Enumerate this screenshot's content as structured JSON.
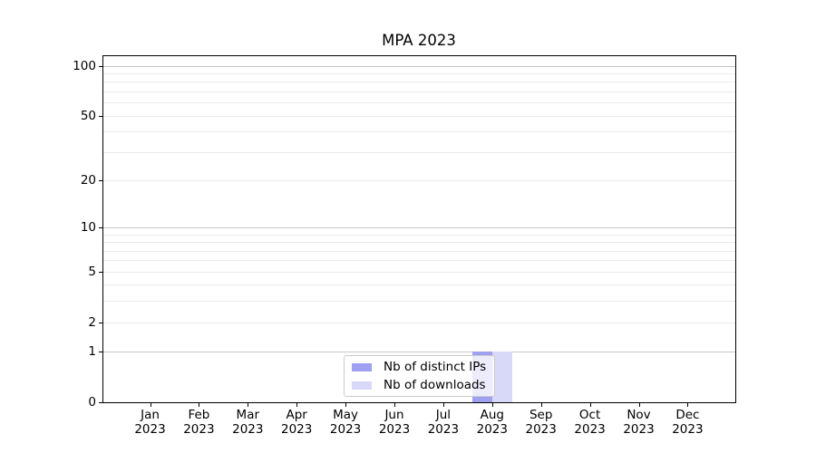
{
  "figure": {
    "title": "MPA 2023"
  },
  "chart_data": {
    "type": "bar",
    "title": "MPA 2023",
    "categories": [
      "Jan",
      "Feb",
      "Mar",
      "Apr",
      "May",
      "Jun",
      "Jul",
      "Aug",
      "Sep",
      "Oct",
      "Nov",
      "Dec"
    ],
    "category_year": "2023",
    "series": [
      {
        "name": "Nb of distinct IPs",
        "color": "#a0a0f0",
        "values": [
          0,
          0,
          0,
          0,
          0,
          0,
          0,
          1,
          0,
          0,
          0,
          0
        ]
      },
      {
        "name": "Nb of downloads",
        "color": "#d8d8f8",
        "values": [
          0,
          0,
          0,
          0,
          0,
          0,
          0,
          1,
          0,
          0,
          0,
          0
        ]
      }
    ],
    "yscale": "log1p",
    "ylim": [
      0,
      100
    ],
    "y_tick_values": [
      0,
      1,
      2,
      5,
      10,
      20,
      50,
      100
    ],
    "y_major_gridlines": [
      1,
      10,
      100
    ],
    "y_minor_gridlines": [
      2,
      3,
      4,
      5,
      6,
      7,
      8,
      9,
      20,
      30,
      40,
      50,
      60,
      70,
      80,
      90
    ],
    "grid": true,
    "legend_position": "lower center"
  },
  "colors": {
    "grid_major": "#c8c8c8",
    "grid_minor": "#ebebeb",
    "spine": "#000000",
    "legend_border": "#cccccc",
    "background": "#ffffff"
  }
}
